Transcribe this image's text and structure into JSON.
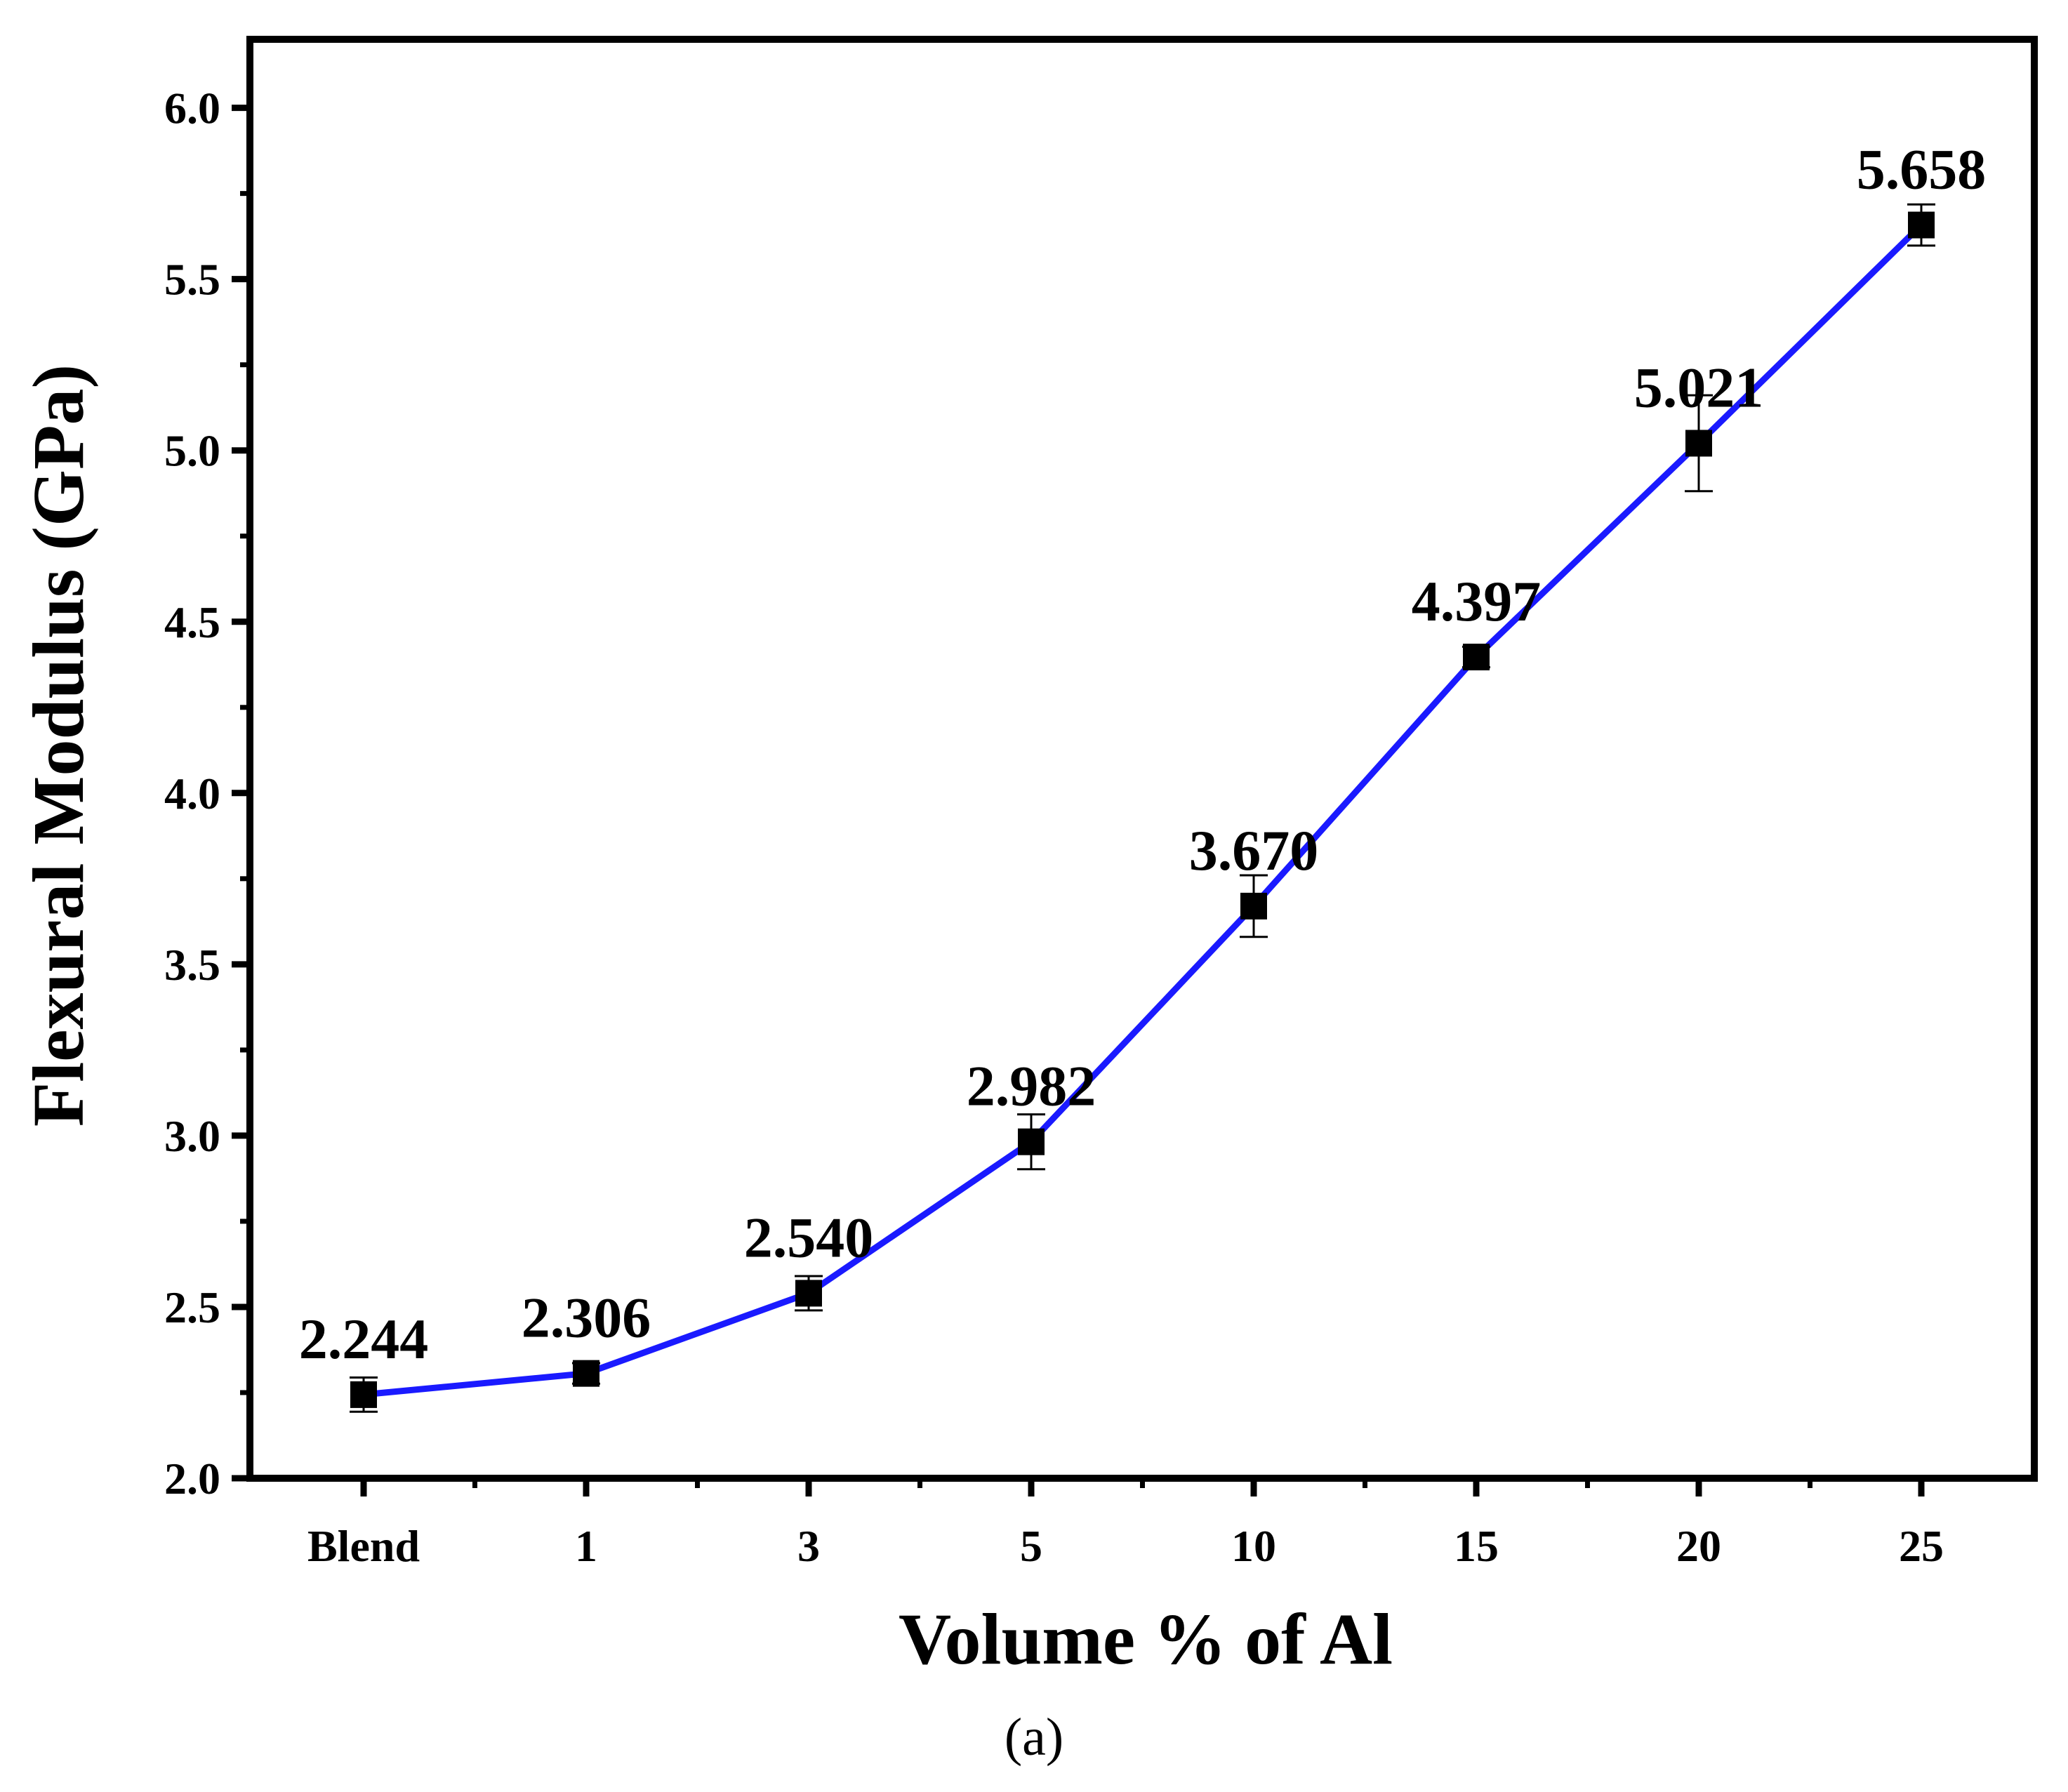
{
  "chart_data": {
    "type": "line",
    "title": "",
    "xlabel": "Volume % of Al",
    "ylabel": "Flexural Modulus (GPa)",
    "caption": "(a)",
    "categories": [
      "Blend",
      "1",
      "3",
      "5",
      "10",
      "15",
      "20",
      "25"
    ],
    "series": [
      {
        "name": "Flexural Modulus",
        "values": [
          2.244,
          2.306,
          2.54,
          2.982,
          3.67,
          4.397,
          5.021,
          5.658
        ],
        "value_labels": [
          "2.244",
          "2.306",
          "2.540",
          "2.982",
          "3.670",
          "4.397",
          "5.021",
          "5.658"
        ],
        "error": [
          0.05,
          0.03,
          0.05,
          0.08,
          0.09,
          0.03,
          0.14,
          0.06
        ],
        "color": "#1a1aff",
        "marker": "square",
        "marker_color": "#000000"
      }
    ],
    "ylim": [
      2.0,
      6.2
    ],
    "yticks": [
      2.0,
      2.5,
      3.0,
      3.5,
      4.0,
      4.5,
      5.0,
      5.5,
      6.0
    ],
    "ytick_labels": [
      "2.0",
      "2.5",
      "3.0",
      "3.5",
      "4.0",
      "4.5",
      "5.0",
      "5.5",
      "6.0"
    ],
    "grid": false,
    "legend": "none"
  }
}
